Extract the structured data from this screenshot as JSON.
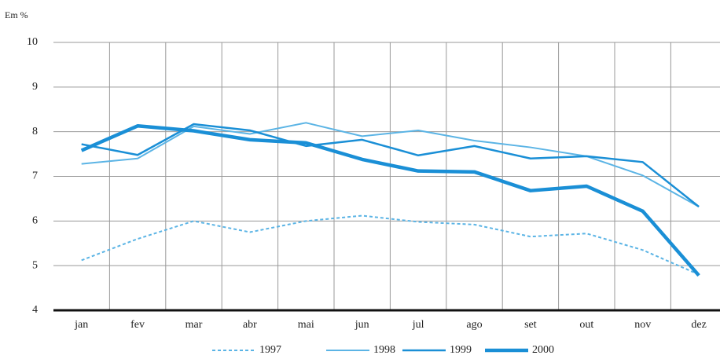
{
  "chart_data": {
    "type": "line",
    "y_label": "Em %",
    "categories": [
      "jan",
      "fev",
      "mar",
      "abr",
      "mai",
      "jun",
      "jul",
      "ago",
      "set",
      "out",
      "nov",
      "dez"
    ],
    "series": [
      {
        "name": "1997",
        "color": "#5bb4e5",
        "dashed": true,
        "line_width": 2,
        "values": [
          5.12,
          5.6,
          6.0,
          5.75,
          6.0,
          6.12,
          5.98,
          5.92,
          5.65,
          5.72,
          5.35,
          4.8
        ]
      },
      {
        "name": "1998",
        "color": "#5bb4e5",
        "dashed": false,
        "line_width": 2,
        "values": [
          7.28,
          7.4,
          8.12,
          7.95,
          8.2,
          7.9,
          8.03,
          7.8,
          7.65,
          7.45,
          7.02,
          6.32
        ]
      },
      {
        "name": "1999",
        "color": "#1a8fd6",
        "dashed": false,
        "line_width": 2.5,
        "values": [
          7.72,
          7.48,
          8.17,
          8.03,
          7.68,
          7.82,
          7.47,
          7.68,
          7.4,
          7.45,
          7.32,
          6.32
        ]
      },
      {
        "name": "2000",
        "color": "#1a8fd6",
        "dashed": false,
        "line_width": 4.5,
        "values": [
          7.58,
          8.13,
          8.02,
          7.82,
          7.75,
          7.38,
          7.12,
          7.1,
          6.68,
          6.78,
          6.22,
          4.78
        ]
      }
    ],
    "ylim": [
      4,
      10
    ],
    "yticks": [
      4,
      5,
      6,
      7,
      8,
      9,
      10
    ],
    "grid": true
  }
}
